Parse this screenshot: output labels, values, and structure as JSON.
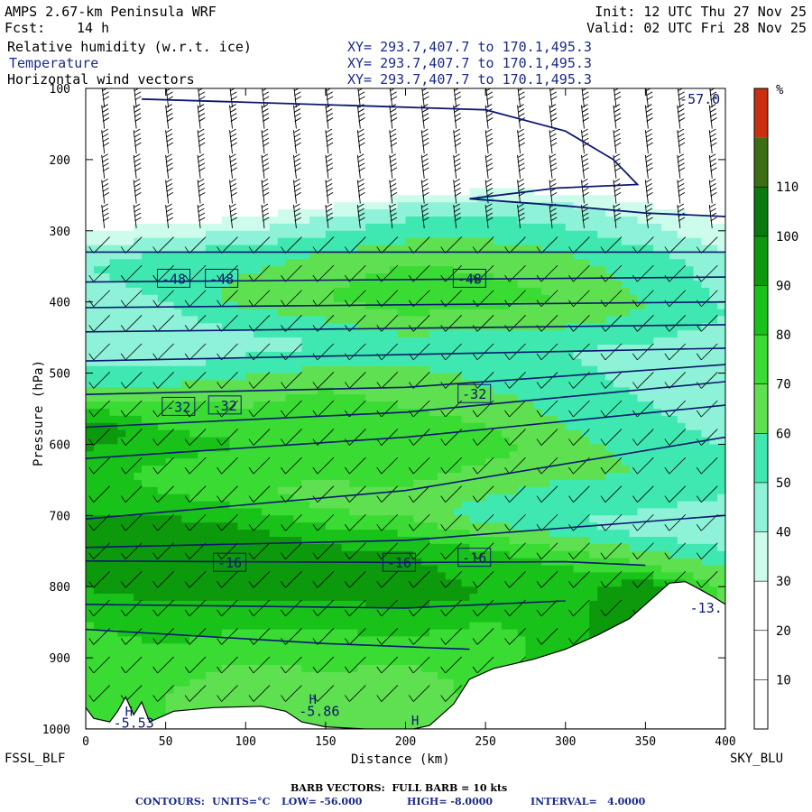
{
  "header": {
    "model": "AMPS 2.67-km Peninsula WRF",
    "fcst_label": "Fcst:",
    "fcst_value": "14 h",
    "init": "Init: 12 UTC Thu 27 Nov 25",
    "valid": "Valid: 02 UTC Fri 28 Nov 25",
    "fields": [
      {
        "name": "Relative humidity (w.r.t. ice)",
        "xy": "XY= 293.7,407.7 to 170.1,495.3"
      },
      {
        "name": "Temperature",
        "xy": "XY= 293.7,407.7 to 170.1,495.3"
      },
      {
        "name": "Horizontal wind vectors",
        "xy": "XY= 293.7,407.7 to 170.1,495.3"
      }
    ]
  },
  "colors": {
    "navy": "#1a2a8a",
    "contour": "#0c1870",
    "terrain_fill": "#ffffff"
  },
  "chart_data": {
    "type": "heatmap",
    "description_fields": [
      "relative humidity shading",
      "temperature contours",
      "wind barbs"
    ],
    "xlabel": "Distance (km)",
    "ylabel": "Pressure (hPa)",
    "xlim": [
      0,
      400
    ],
    "ylim": [
      1000,
      100
    ],
    "x_ticks": [
      0,
      50,
      100,
      150,
      200,
      250,
      300,
      350,
      400
    ],
    "y_ticks": [
      100,
      200,
      300,
      400,
      500,
      600,
      700,
      800,
      900,
      1000
    ],
    "x_start_label": "FSSL_BLF",
    "x_end_label": "SKY_BLU",
    "colorbar": {
      "unit_label": "%",
      "levels": [
        10,
        20,
        30,
        40,
        50,
        60,
        70,
        80,
        90,
        100,
        110
      ],
      "colors": [
        "#ffffff",
        "#ffffff",
        "#ffffff",
        "#cdfcec",
        "#8ef2d8",
        "#3fe8b0",
        "#5fe050",
        "#3adb33",
        "#19c219",
        "#0c9a0c",
        "#0a7a10",
        "#3c6e14",
        "#c83010"
      ]
    },
    "rh_profiles": [
      {
        "x": 0,
        "rh": [
          [
            300,
            20
          ],
          [
            350,
            40
          ],
          [
            420,
            35
          ],
          [
            470,
            30
          ],
          [
            530,
            55
          ],
          [
            580,
            90
          ],
          [
            620,
            75
          ],
          [
            700,
            80
          ],
          [
            780,
            85
          ],
          [
            850,
            70
          ],
          [
            950,
            60
          ]
        ]
      },
      {
        "x": 50,
        "rh": [
          [
            300,
            25
          ],
          [
            340,
            45
          ],
          [
            400,
            40
          ],
          [
            470,
            30
          ],
          [
            540,
            60
          ],
          [
            600,
            75
          ],
          [
            650,
            65
          ],
          [
            720,
            85
          ],
          [
            780,
            88
          ],
          [
            850,
            75
          ],
          [
            950,
            60
          ]
        ]
      },
      {
        "x": 100,
        "rh": [
          [
            290,
            25
          ],
          [
            330,
            45
          ],
          [
            390,
            55
          ],
          [
            460,
            35
          ],
          [
            520,
            55
          ],
          [
            600,
            70
          ],
          [
            660,
            60
          ],
          [
            730,
            85
          ],
          [
            790,
            90
          ],
          [
            860,
            70
          ],
          [
            950,
            50
          ]
        ]
      },
      {
        "x": 150,
        "rh": [
          [
            280,
            30
          ],
          [
            330,
            50
          ],
          [
            390,
            60
          ],
          [
            460,
            40
          ],
          [
            520,
            60
          ],
          [
            600,
            70
          ],
          [
            680,
            55
          ],
          [
            740,
            80
          ],
          [
            800,
            85
          ],
          [
            860,
            70
          ],
          [
            950,
            55
          ]
        ]
      },
      {
        "x": 200,
        "rh": [
          [
            270,
            35
          ],
          [
            330,
            55
          ],
          [
            390,
            70
          ],
          [
            460,
            45
          ],
          [
            520,
            55
          ],
          [
            600,
            70
          ],
          [
            690,
            55
          ],
          [
            750,
            80
          ],
          [
            810,
            85
          ],
          [
            870,
            70
          ],
          [
            950,
            50
          ]
        ]
      },
      {
        "x": 250,
        "rh": [
          [
            260,
            35
          ],
          [
            330,
            55
          ],
          [
            390,
            65
          ],
          [
            460,
            45
          ],
          [
            520,
            50
          ],
          [
            600,
            65
          ],
          [
            700,
            45
          ],
          [
            760,
            75
          ],
          [
            810,
            80
          ],
          [
            870,
            65
          ]
        ]
      },
      {
        "x": 300,
        "rh": [
          [
            260,
            30
          ],
          [
            330,
            50
          ],
          [
            400,
            60
          ],
          [
            470,
            40
          ],
          [
            530,
            45
          ],
          [
            620,
            55
          ],
          [
            710,
            40
          ],
          [
            770,
            70
          ],
          [
            820,
            75
          ]
        ]
      },
      {
        "x": 350,
        "rh": [
          [
            270,
            25
          ],
          [
            340,
            45
          ],
          [
            410,
            50
          ],
          [
            480,
            35
          ],
          [
            540,
            40
          ],
          [
            640,
            50
          ],
          [
            720,
            35
          ],
          [
            780,
            65
          ],
          [
            800,
            90
          ]
        ]
      },
      {
        "x": 400,
        "rh": [
          [
            290,
            20
          ],
          [
            350,
            35
          ],
          [
            420,
            40
          ],
          [
            480,
            30
          ],
          [
            560,
            35
          ],
          [
            650,
            45
          ],
          [
            720,
            30
          ],
          [
            790,
            55
          ]
        ]
      }
    ],
    "temperature_contours_C": {
      "low": -56.0,
      "high": -8.0,
      "interval": 4.0,
      "lines": [
        {
          "level": -56,
          "points": [
            [
              0,
              330
            ],
            [
              400,
              330
            ]
          ]
        },
        {
          "level": -52,
          "points": [
            [
              0,
              372
            ],
            [
              400,
              365
            ]
          ]
        },
        {
          "level": -48,
          "points": [
            [
              0,
              408
            ],
            [
              400,
              400
            ]
          ]
        },
        {
          "level": -44,
          "points": [
            [
              0,
              442
            ],
            [
              400,
              432
            ]
          ]
        },
        {
          "level": -40,
          "points": [
            [
              0,
              483
            ],
            [
              400,
              465
            ]
          ]
        },
        {
          "level": -36,
          "points": [
            [
              0,
              530
            ],
            [
              200,
              520
            ],
            [
              400,
              488
            ]
          ]
        },
        {
          "level": -32,
          "points": [
            [
              0,
              576
            ],
            [
              200,
              555
            ],
            [
              400,
              512
            ]
          ]
        },
        {
          "level": -28,
          "points": [
            [
              0,
              620
            ],
            [
              200,
              590
            ],
            [
              400,
              545
            ]
          ]
        },
        {
          "level": -24,
          "points": [
            [
              0,
              705
            ],
            [
              200,
              665
            ],
            [
              400,
              590
            ]
          ]
        },
        {
          "level": -20,
          "points": [
            [
              0,
              745
            ],
            [
              200,
              735
            ],
            [
              400,
              700
            ]
          ]
        },
        {
          "level": -16,
          "points": [
            [
              0,
              764
            ],
            [
              200,
              766
            ],
            [
              300,
              765
            ],
            [
              350,
              770
            ]
          ]
        },
        {
          "level": -12,
          "points": [
            [
              0,
              825
            ],
            [
              200,
              830
            ],
            [
              300,
              820
            ]
          ]
        },
        {
          "level": -8,
          "points": [
            [
              0,
              860
            ],
            [
              150,
              880
            ],
            [
              240,
              888
            ]
          ]
        }
      ],
      "tropopause_line": [
        [
          35,
          115
        ],
        [
          180,
          125
        ],
        [
          250,
          130
        ],
        [
          300,
          160
        ],
        [
          330,
          200
        ],
        [
          345,
          235
        ],
        [
          295,
          240
        ],
        [
          240,
          255
        ],
        [
          300,
          265
        ],
        [
          350,
          275
        ],
        [
          400,
          280
        ]
      ],
      "labels": [
        {
          "text": "-48",
          "x": 55,
          "p": 368
        },
        {
          "text": "-48",
          "x": 85,
          "p": 368
        },
        {
          "text": "-48",
          "x": 240,
          "p": 368
        },
        {
          "text": "-32",
          "x": 58,
          "p": 548
        },
        {
          "text": "-32",
          "x": 87,
          "p": 546
        },
        {
          "text": "-32",
          "x": 243,
          "p": 530
        },
        {
          "text": "-16",
          "x": 90,
          "p": 767
        },
        {
          "text": "-16",
          "x": 196,
          "p": 767
        },
        {
          "text": "-16",
          "x": 243,
          "p": 760
        },
        {
          "text": "-57.0",
          "x": 384,
          "p": 115
        },
        {
          "text": "-13.",
          "x": 388,
          "p": 830
        },
        {
          "text": "-5.86",
          "x": 146,
          "p": 975
        },
        {
          "text": "-5.53",
          "x": 30,
          "p": 992
        }
      ],
      "extrema_marks": [
        {
          "text": "H",
          "x": 142,
          "p": 958
        },
        {
          "text": "H",
          "x": 206,
          "p": 988
        },
        {
          "text": "H",
          "x": 27,
          "p": 975
        }
      ]
    },
    "terrain_surface_hPa": [
      [
        0,
        970
      ],
      [
        5,
        985
      ],
      [
        15,
        990
      ],
      [
        20,
        975
      ],
      [
        25,
        955
      ],
      [
        30,
        980
      ],
      [
        35,
        962
      ],
      [
        40,
        990
      ],
      [
        55,
        975
      ],
      [
        80,
        970
      ],
      [
        110,
        968
      ],
      [
        125,
        975
      ],
      [
        135,
        990
      ],
      [
        150,
        997
      ],
      [
        175,
        1000
      ],
      [
        205,
        1000
      ],
      [
        215,
        995
      ],
      [
        230,
        965
      ],
      [
        240,
        930
      ],
      [
        255,
        915
      ],
      [
        280,
        902
      ],
      [
        300,
        888
      ],
      [
        320,
        868
      ],
      [
        340,
        845
      ],
      [
        350,
        825
      ],
      [
        360,
        805
      ],
      [
        365,
        795
      ],
      [
        375,
        793
      ],
      [
        385,
        805
      ],
      [
        393,
        815
      ],
      [
        400,
        825
      ]
    ],
    "barb_rows_hPa": [
      110,
      140,
      175,
      210,
      245,
      280,
      320,
      360,
      395,
      430,
      470,
      510,
      550,
      590,
      630,
      670,
      710,
      750,
      790,
      830,
      870,
      910,
      950
    ],
    "barb_columns_km": [
      10,
      30,
      50,
      70,
      90,
      110,
      130,
      150,
      170,
      190,
      210,
      230,
      250,
      270,
      290,
      310,
      330,
      350,
      370,
      390
    ]
  },
  "footer": {
    "barb_note": "BARB VECTORS:  FULL BARB = 10 kts",
    "contours_label": "CONTOURS:",
    "units": "UNITS=°C",
    "low": "LOW= -56.000",
    "high": "HIGH= -8.0000",
    "interval": "INTERVAL=   4.0000"
  }
}
